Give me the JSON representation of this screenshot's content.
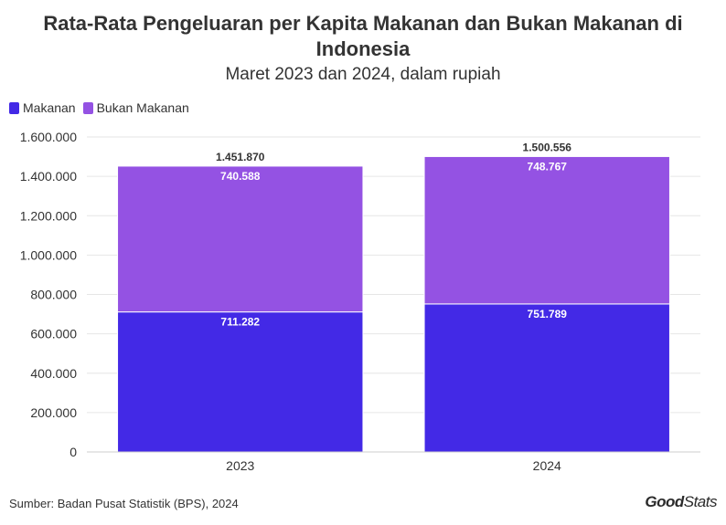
{
  "colors": {
    "makanan": "#4329e6",
    "bukan_makanan": "#9452e3",
    "grid": "#e6e6e6",
    "text": "#333333"
  },
  "footer": {
    "source": "Sumber: Badan Pusat Statistik (BPS), 2024",
    "logo_good": "Good",
    "logo_stats": "Stats"
  },
  "chart_data": {
    "type": "bar",
    "stacked": true,
    "title": "Rata-Rata Pengeluaran per Kapita Makanan dan Bukan Makanan di Indonesia",
    "subtitle": "Maret 2023 dan 2024, dalam rupiah",
    "categories": [
      "2023",
      "2024"
    ],
    "series": [
      {
        "name": "Makanan",
        "values": [
          711282,
          751789
        ],
        "labels": [
          "711.282",
          "751.789"
        ]
      },
      {
        "name": "Bukan Makanan",
        "values": [
          740588,
          748767
        ],
        "labels": [
          "740.588",
          "748.767"
        ]
      }
    ],
    "totals": [
      1451870,
      1500556
    ],
    "total_labels": [
      "1.451.870",
      "1.500.556"
    ],
    "ylim": [
      0,
      1600000
    ],
    "yticks": [
      0,
      200000,
      400000,
      600000,
      800000,
      1000000,
      1200000,
      1400000,
      1600000
    ],
    "ytick_labels": [
      "0",
      "200.000",
      "400.000",
      "600.000",
      "800.000",
      "1.000.000",
      "1.200.000",
      "1.400.000",
      "1.600.000"
    ],
    "grid": true,
    "legend_position": "top-left"
  }
}
